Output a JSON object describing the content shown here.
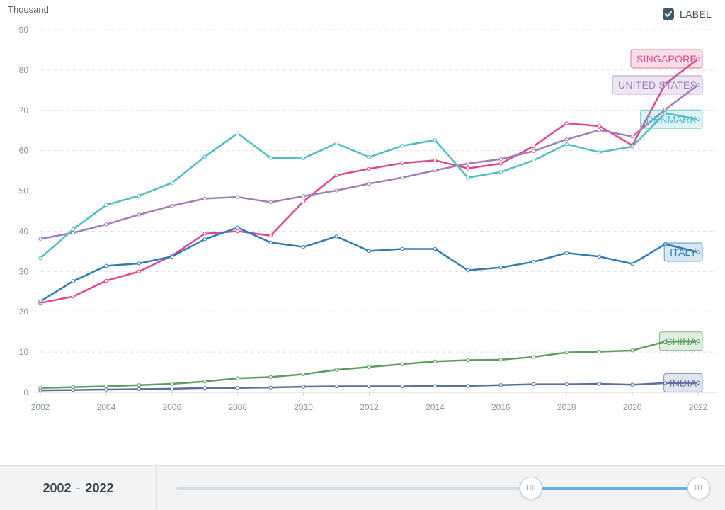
{
  "chart_data": {
    "type": "line",
    "ylabel": "Thousand",
    "ylim": [
      0,
      90
    ],
    "yticks": [
      0,
      10,
      20,
      30,
      40,
      50,
      60,
      70,
      80,
      90
    ],
    "xticks": [
      2002,
      2004,
      2006,
      2008,
      2010,
      2012,
      2014,
      2016,
      2018,
      2020,
      2022
    ],
    "x": [
      2002,
      2003,
      2004,
      2005,
      2006,
      2007,
      2008,
      2009,
      2010,
      2011,
      2012,
      2013,
      2014,
      2015,
      2016,
      2017,
      2018,
      2019,
      2020,
      2021,
      2022
    ],
    "grid": true,
    "series": [
      {
        "name": "SINGAPORE",
        "color": "#e0468a",
        "values": [
          22.2,
          23.8,
          27.7,
          30.0,
          33.9,
          39.4,
          40.0,
          38.9,
          47.4,
          53.9,
          55.5,
          56.9,
          57.6,
          55.6,
          56.8,
          61.1,
          66.8,
          66.1,
          61.3,
          76.5,
          82.8
        ]
      },
      {
        "name": "UNITED STATES",
        "color": "#a07cbc",
        "values": [
          38.1,
          39.6,
          41.7,
          44.1,
          46.3,
          48.1,
          48.5,
          47.2,
          48.7,
          50.1,
          51.8,
          53.3,
          55.1,
          56.8,
          57.9,
          59.9,
          62.8,
          65.1,
          63.5,
          70.2,
          76.3
        ]
      },
      {
        "name": "DENMARK",
        "color": "#4fbcc6",
        "values": [
          33.3,
          40.5,
          46.5,
          48.8,
          52.0,
          58.5,
          64.3,
          58.2,
          58.1,
          61.8,
          58.4,
          61.2,
          62.6,
          53.3,
          54.7,
          57.6,
          61.6,
          59.6,
          61.0,
          69.3,
          67.8
        ]
      },
      {
        "name": "ITALY",
        "color": "#2f7bb5",
        "values": [
          22.6,
          27.6,
          31.4,
          32.0,
          33.7,
          38.0,
          40.9,
          37.2,
          36.1,
          38.7,
          35.1,
          35.6,
          35.6,
          30.3,
          31.0,
          32.4,
          34.6,
          33.7,
          31.9,
          36.8,
          34.8
        ]
      },
      {
        "name": "CHINA",
        "color": "#5c9e5c",
        "values": [
          1.1,
          1.3,
          1.5,
          1.8,
          2.1,
          2.7,
          3.5,
          3.8,
          4.5,
          5.6,
          6.3,
          7.0,
          7.7,
          8.0,
          8.1,
          8.8,
          9.9,
          10.1,
          10.4,
          12.6,
          12.7
        ]
      },
      {
        "name": "INDIA",
        "color": "#5a6fa0",
        "values": [
          0.5,
          0.6,
          0.7,
          0.8,
          0.9,
          1.1,
          1.1,
          1.2,
          1.4,
          1.5,
          1.5,
          1.5,
          1.6,
          1.6,
          1.8,
          2.0,
          2.0,
          2.1,
          1.9,
          2.3,
          2.4
        ]
      }
    ]
  },
  "controls": {
    "label_toggle_text": "LABEL",
    "label_checked": true,
    "range_start": "2002",
    "range_separator": "-",
    "range_end": "2022",
    "slider_accent_color": "#62b3e8",
    "slider_start_fraction": 0.678,
    "slider_end_fraction": 1.0,
    "handle_icon": "III"
  }
}
